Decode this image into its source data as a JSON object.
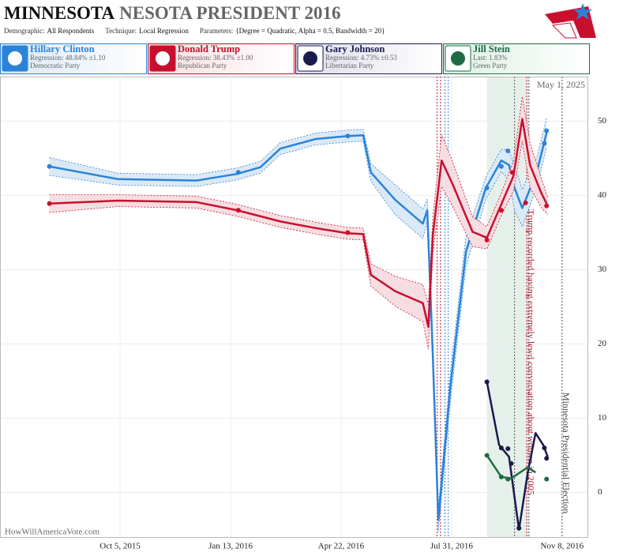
{
  "header": {
    "title_bold": "MINNESOTA",
    "title_rest": "NESOTA PRESIDENT 2016",
    "params": [
      {
        "label": "Demographic:",
        "value": "All Respondents"
      },
      {
        "label": "Technique:",
        "value": "Local Regression"
      },
      {
        "label": "Parameters:",
        "value": "{Degree = Quadratic, Alpha = 0.5, Bandwidth = 20}"
      }
    ]
  },
  "chart_data": {
    "type": "line",
    "date_note": "May 1, 2025",
    "watermark": "HowWillAmericaVote.com",
    "xlim": [
      "2015-06-19",
      "2016-12-01"
    ],
    "xticks": [
      {
        "value": "2015-10-05",
        "label": "Oct 5, 2015"
      },
      {
        "value": "2016-01-13",
        "label": "Jan 13, 2016"
      },
      {
        "value": "2016-04-22",
        "label": "Apr 22, 2016"
      },
      {
        "value": "2016-07-31",
        "label": "Jul 31, 2016"
      },
      {
        "value": "2016-11-08",
        "label": "Nov 8, 2016"
      }
    ],
    "ylim": [
      -6,
      56
    ],
    "yticks": [
      0,
      10,
      20,
      30,
      40,
      50
    ],
    "grid": true,
    "shade": {
      "from": "2016-09-01",
      "to": "2016-10-09",
      "color": "#e6f0ea"
    },
    "events": [
      {
        "x": "2016-07-18",
        "color": "#c8102e"
      },
      {
        "x": "2016-07-21",
        "color": "#c8102e"
      },
      {
        "x": "2016-07-25",
        "color": "#2b83d9"
      },
      {
        "x": "2016-07-28",
        "color": "#2b83d9"
      },
      {
        "x": "2016-09-26",
        "color": "#555555"
      },
      {
        "x": "2016-10-07",
        "color": "#c8102e",
        "label": "Trump recorded having extremely lewd conversation about women in 2005"
      },
      {
        "x": "2016-10-09",
        "color": "#555555"
      },
      {
        "x": "2016-11-08",
        "color": "#555555",
        "label": "Minnesota Presidential Election"
      }
    ],
    "series": [
      {
        "name": "Hillary Clinton",
        "stat": "Regression: 48.84% ±1.10",
        "party": "Democratic Party",
        "color": "#2b83d9",
        "band": "#dbe9f6",
        "x": [
          "2015-08-02",
          "2015-10-03",
          "2015-12-13",
          "2016-01-19",
          "2016-02-09",
          "2016-02-27",
          "2016-03-30",
          "2016-04-28",
          "2016-05-12",
          "2016-05-19",
          "2016-06-10",
          "2016-07-05",
          "2016-07-09",
          "2016-07-14",
          "2016-07-19",
          "2016-07-30",
          "2016-08-13",
          "2016-08-31",
          "2016-09-14",
          "2016-09-21",
          "2016-09-26",
          "2016-10-03",
          "2016-10-16",
          "2016-10-25"
        ],
        "values": [
          43.9,
          42.2,
          42.0,
          42.9,
          43.8,
          46.3,
          47.6,
          48.0,
          48.1,
          43.1,
          39.4,
          36.2,
          38.0,
          18.6,
          -3.7,
          14.4,
          32.4,
          41.0,
          44.7,
          44.1,
          41.0,
          38.3,
          43.1,
          48.4
        ],
        "error": [
          1.2,
          0.8,
          0.8,
          0.8,
          0.8,
          0.8,
          0.8,
          0.8,
          0.8,
          1.2,
          2.0,
          2.0,
          1.5,
          2.0,
          1.5,
          2.0,
          2.0,
          1.5,
          1.5,
          2.0,
          3.0,
          2.5,
          2.0,
          2.0
        ],
        "polls": {
          "x": [
            "2015-08-02",
            "2016-01-20",
            "2016-04-28",
            "2016-09-01",
            "2016-09-14",
            "2016-09-20",
            "2016-10-23",
            "2016-10-25"
          ],
          "values": [
            43.9,
            43.1,
            48.0,
            41.0,
            43.9,
            46.0,
            47.0,
            48.7
          ]
        }
      },
      {
        "name": "Donald Trump",
        "stat": "Regression: 38.43% ±1.00",
        "party": "Republican Party",
        "color": "#c8102e",
        "band": "#f6dde2",
        "x": [
          "2015-08-02",
          "2015-10-03",
          "2015-12-13",
          "2016-01-19",
          "2016-02-27",
          "2016-03-30",
          "2016-04-28",
          "2016-05-12",
          "2016-05-19",
          "2016-06-10",
          "2016-07-05",
          "2016-07-10",
          "2016-07-14",
          "2016-07-22",
          "2016-08-01",
          "2016-08-19",
          "2016-09-01",
          "2016-09-14",
          "2016-09-25",
          "2016-10-03",
          "2016-10-10",
          "2016-10-20",
          "2016-10-26"
        ],
        "values": [
          38.9,
          39.3,
          39.1,
          38.0,
          36.5,
          35.6,
          34.9,
          34.8,
          29.3,
          27.1,
          25.5,
          22.3,
          34.6,
          44.7,
          41.5,
          35.1,
          34.3,
          38.8,
          42.6,
          50.3,
          44.1,
          40.4,
          38.6
        ],
        "error": [
          1.2,
          0.8,
          0.8,
          0.8,
          0.8,
          0.8,
          0.8,
          0.8,
          1.5,
          2.0,
          2.5,
          3.0,
          2.5,
          3.5,
          3.0,
          2.0,
          1.5,
          1.5,
          2.0,
          3.0,
          3.0,
          2.0,
          1.2
        ],
        "polls": {
          "x": [
            "2015-08-02",
            "2016-01-20",
            "2016-04-28",
            "2016-09-01",
            "2016-09-14",
            "2016-09-24",
            "2016-10-06",
            "2016-10-25"
          ],
          "values": [
            38.9,
            38.0,
            35.0,
            34.0,
            38.0,
            43.1,
            39.0,
            38.6
          ]
        }
      },
      {
        "name": "Gary Johnson",
        "stat": "Regression: 4.73% ±0.53",
        "party": "Libertarian Party",
        "color": "#1a1a4e",
        "x": [
          "2016-09-01",
          "2016-09-12",
          "2016-09-21",
          "2016-09-30",
          "2016-10-08",
          "2016-10-15",
          "2016-10-22",
          "2016-10-26"
        ],
        "values": [
          14.9,
          6.4,
          4.8,
          -5.0,
          2.7,
          8.0,
          6.4,
          4.8
        ],
        "polls": {
          "x": [
            "2016-09-01",
            "2016-09-14",
            "2016-09-20",
            "2016-09-23",
            "2016-09-30",
            "2016-10-23",
            "2016-10-25"
          ],
          "values": [
            14.9,
            6.0,
            5.9,
            3.9,
            -4.8,
            6.0,
            4.6
          ]
        }
      },
      {
        "name": "Jill Stein",
        "stat": "Last: 1.83%",
        "party": "Green Party",
        "color": "#1e6b45",
        "x": [
          "2016-09-01",
          "2016-09-14",
          "2016-09-23",
          "2016-10-08",
          "2016-10-15"
        ],
        "values": [
          5.0,
          2.1,
          1.9,
          3.4,
          2.7
        ],
        "polls": {
          "x": [
            "2016-09-01",
            "2016-09-14",
            "2016-09-20",
            "2016-10-25"
          ],
          "values": [
            5.0,
            2.1,
            1.8,
            1.8
          ]
        }
      }
    ]
  }
}
